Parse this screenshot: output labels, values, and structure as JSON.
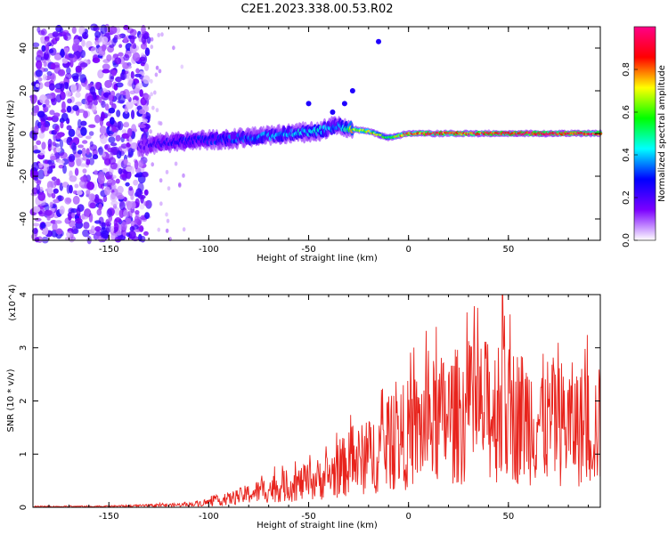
{
  "figure": {
    "title": "C2E1.2023.338.00.53.R02"
  },
  "chart_data": [
    {
      "type": "heatmap",
      "title": "C2E1.2023.338.00.53.R02",
      "xlabel": "Height of straight line (km)",
      "ylabel": "Frequency (Hz)",
      "xlim": [
        -188,
        96
      ],
      "ylim": [
        -50,
        50
      ],
      "x_ticks": [
        -150,
        -100,
        -50,
        0,
        50
      ],
      "y_ticks": [
        -40,
        -20,
        0,
        20,
        40
      ],
      "colorbar": {
        "label": "Normalized spectral amplitude",
        "range": [
          0,
          1
        ],
        "ticks": [
          "0.0",
          "0.2",
          "0.4",
          "0.6",
          "0.8"
        ],
        "colors": [
          "#ffffff",
          "#7b00ff",
          "#0000ff",
          "#00ffff",
          "#00ff00",
          "#ffff00",
          "#ff0000",
          "#ff0088"
        ]
      },
      "noise_region_x": [
        -188,
        -130
      ],
      "signal_track": {
        "x": [
          -135,
          -120,
          -100,
          -80,
          -60,
          -45,
          -35,
          -28,
          -20,
          -10,
          0,
          20,
          40,
          60,
          80,
          96
        ],
        "y": [
          -6,
          -4,
          -3,
          -2,
          0,
          1,
          4,
          2,
          1,
          -2,
          0,
          0,
          0,
          0,
          0,
          0
        ],
        "amplitude": [
          0.2,
          0.25,
          0.3,
          0.35,
          0.4,
          0.45,
          0.35,
          0.7,
          0.75,
          0.6,
          0.9,
          0.9,
          0.92,
          0.95,
          0.95,
          0.95
        ]
      },
      "grid": false
    },
    {
      "type": "line",
      "xlabel": "Height of straight line (km)",
      "ylabel": "SNR (10 * v/v)",
      "y_multiplier": "(x10^4)",
      "xlim": [
        -188,
        96
      ],
      "ylim": [
        0,
        4
      ],
      "x_ticks": [
        -150,
        -100,
        -50,
        0,
        50
      ],
      "y_ticks": [
        0,
        1,
        2,
        3,
        4
      ],
      "series": [
        {
          "color": "#e8231c",
          "envelope_x": [
            -188,
            -150,
            -130,
            -110,
            -100,
            -90,
            -80,
            -70,
            -60,
            -50,
            -40,
            -30,
            -20,
            -10,
            0,
            10,
            20,
            30,
            40,
            50,
            60,
            70,
            80,
            96
          ],
          "envelope_y": [
            0.02,
            0.03,
            0.05,
            0.08,
            0.15,
            0.25,
            0.4,
            0.55,
            0.65,
            0.75,
            0.95,
            1.3,
            1.5,
            1.9,
            2.2,
            2.5,
            2.7,
            2.8,
            2.9,
            2.8,
            2.7,
            2.6,
            2.5,
            2.4
          ],
          "peak_at": [
            47,
            4.05
          ]
        }
      ],
      "grid": false
    }
  ]
}
